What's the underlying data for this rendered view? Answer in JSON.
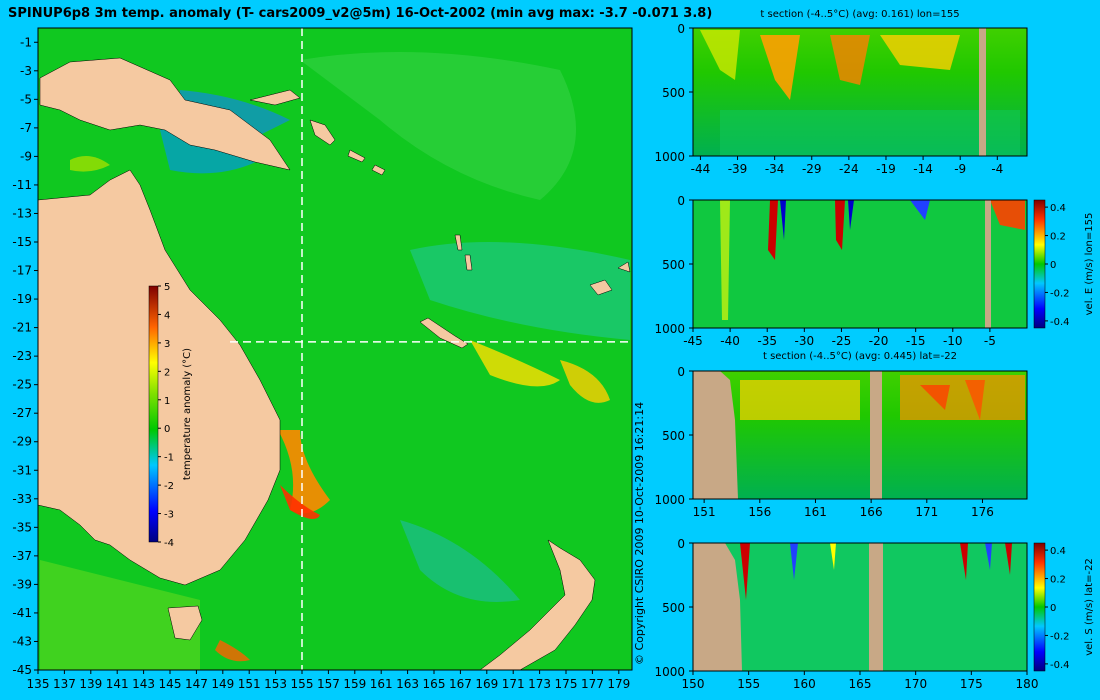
{
  "title": "SPINUP6p8 3m temp. anomaly (T- cars2009_v2@5m) 16-Oct-2002 (min avg max: -3.7 -0.071 3.8)",
  "copyright": "© Copyright CSIRO 2009   10-Oct-2009 16:21:14",
  "colors": {
    "background": "#00ccff",
    "land": "#f5c9a1",
    "section_land": "#c8a886",
    "ocean": "#00c800",
    "crosshair": "#ffffff"
  },
  "chart_data": [
    {
      "id": "map",
      "type": "heatmap",
      "title": "SPINUP6p8 3m temp. anomaly (T- cars2009_v2@5m) 16-Oct-2002 (min avg max: -3.7 -0.071 3.8)",
      "xlabel": "",
      "ylabel": "",
      "xlim": [
        135,
        180
      ],
      "ylim": [
        -45,
        0
      ],
      "x_ticks": [
        "135",
        "137",
        "139",
        "141",
        "143",
        "145",
        "147",
        "149",
        "151",
        "153",
        "155",
        "157",
        "159",
        "161",
        "163",
        "165",
        "167",
        "169",
        "171",
        "173",
        "175",
        "177",
        "179"
      ],
      "y_ticks": [
        "-1",
        "-3",
        "-5",
        "-7",
        "-9",
        "-11",
        "-13",
        "-15",
        "-17",
        "-19",
        "-21",
        "-23",
        "-25",
        "-27",
        "-29",
        "-31",
        "-33",
        "-35",
        "-37",
        "-39",
        "-41",
        "-43",
        "-45"
      ],
      "crosshair": {
        "lon": 155,
        "lat": -22
      },
      "colorbar": {
        "label": "temperature anomaly (°C)",
        "ticks": [
          "5",
          "4",
          "3",
          "2",
          "1",
          "0",
          "-1",
          "-2",
          "-3",
          "-4"
        ],
        "range": [
          -4,
          5
        ]
      }
    },
    {
      "id": "t-section-lon",
      "type": "heatmap",
      "title": "t section (-4..5°C) (avg: 0.161) lon=155",
      "xlim": [
        -45,
        0
      ],
      "ylim": [
        1000,
        0
      ],
      "x_ticks": [
        "-44",
        "-39",
        "-34",
        "-29",
        "-24",
        "-19",
        "-14",
        "-9",
        "-4"
      ],
      "y_ticks": [
        "0",
        "500",
        "1000"
      ]
    },
    {
      "id": "vel-e-section",
      "type": "heatmap",
      "title": "",
      "xlim": [
        -45,
        0
      ],
      "ylim": [
        1000,
        0
      ],
      "x_ticks": [
        "-45",
        "-40",
        "-35",
        "-30",
        "-25",
        "-20",
        "-15",
        "-10",
        "-5"
      ],
      "y_ticks": [
        "0",
        "500",
        "1000"
      ],
      "colorbar": {
        "label": "vel. E (m/s) lon=155",
        "ticks": [
          "0.4",
          "0.2",
          "0",
          "-0.2",
          "-0.4"
        ],
        "range": [
          -0.45,
          0.45
        ]
      }
    },
    {
      "id": "t-section-lat",
      "type": "heatmap",
      "title": "t section (-4..5°C) (avg: 0.445) lat=-22",
      "xlim": [
        150,
        180
      ],
      "ylim": [
        1000,
        0
      ],
      "x_ticks": [
        "151",
        "156",
        "161",
        "166",
        "171",
        "176"
      ],
      "y_ticks": [
        "0",
        "500",
        "1000"
      ]
    },
    {
      "id": "vel-s-section",
      "type": "heatmap",
      "title": "",
      "xlim": [
        150,
        180
      ],
      "ylim": [
        1000,
        0
      ],
      "x_ticks": [
        "150",
        "155",
        "160",
        "165",
        "170",
        "175",
        "180"
      ],
      "y_ticks": [
        "0",
        "500",
        "1000"
      ],
      "colorbar": {
        "label": "vel. S (m/s) lat=-22",
        "ticks": [
          "0.4",
          "0.2",
          "0",
          "-0.2",
          "-0.4"
        ],
        "range": [
          -0.45,
          0.45
        ]
      }
    }
  ]
}
